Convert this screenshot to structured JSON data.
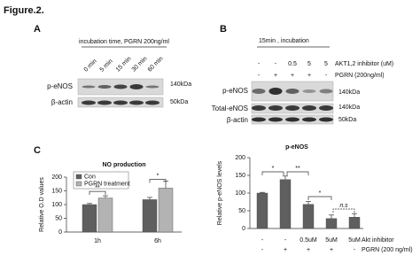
{
  "figure_label": "Figure.2.",
  "panel_a": {
    "label": "A",
    "condition": "incubation time, PGRN 200ng/ml",
    "lanes": [
      "0 min",
      "5 min",
      "15 min",
      "30 min",
      "60 min"
    ],
    "rows": [
      {
        "name": "p-eNOS",
        "marker": "140kDa"
      },
      {
        "name": "β-actin",
        "marker": "50kDa"
      }
    ]
  },
  "panel_b": {
    "label": "B",
    "condition": "15min , incubation",
    "treatments": [
      {
        "name": "AKT1,2 inhibitor (uM)",
        "values": [
          "-",
          "-",
          "0.5",
          "5",
          "5"
        ]
      },
      {
        "name": "PGRN (200ng/ml)",
        "values": [
          "-",
          "+",
          "+",
          "+",
          "-"
        ]
      }
    ],
    "rows": [
      {
        "name": "p-eNOS",
        "marker": "140kDa"
      },
      {
        "name": "Total-eNOS",
        "marker": "140kDa"
      },
      {
        "name": "β-actin",
        "marker": "50kDa"
      }
    ]
  },
  "panel_c_label": "C",
  "chart_data": [
    {
      "type": "bar",
      "title": "NO production",
      "y_label": "Relative O.D values",
      "categories": [
        "1h",
        "6h"
      ],
      "series": [
        {
          "name": "Con",
          "color": "#5f5f5f",
          "values": [
            100,
            118
          ],
          "errors": [
            4,
            8
          ]
        },
        {
          "name": "PGRN treatment",
          "color": "#b3b3b3",
          "values": [
            124,
            160
          ],
          "errors": [
            8,
            25
          ]
        }
      ],
      "ylim": [
        0,
        200
      ],
      "yticks": [
        0,
        50,
        100,
        150,
        200
      ],
      "annotations": [
        "**",
        "*"
      ]
    },
    {
      "type": "bar",
      "title": "p-eNOS",
      "y_label": "Relative p-eNOS levels",
      "values": [
        100,
        138,
        68,
        28,
        32
      ],
      "errors": [
        2,
        10,
        8,
        10,
        10
      ],
      "color": "#5f5f5f",
      "treatments": [
        {
          "name": "Akt inhibitor",
          "values": [
            "-",
            "-",
            "0.5uM",
            "5uM",
            "5uM"
          ]
        },
        {
          "name": "PGRN (200 ng/ml)",
          "values": [
            "-",
            "+",
            "+",
            "+",
            "-"
          ]
        }
      ],
      "ylim": [
        0,
        200
      ],
      "yticks": [
        0,
        50,
        100,
        150,
        200
      ],
      "annotations": [
        "*",
        "**",
        "*",
        "n.s"
      ]
    }
  ]
}
